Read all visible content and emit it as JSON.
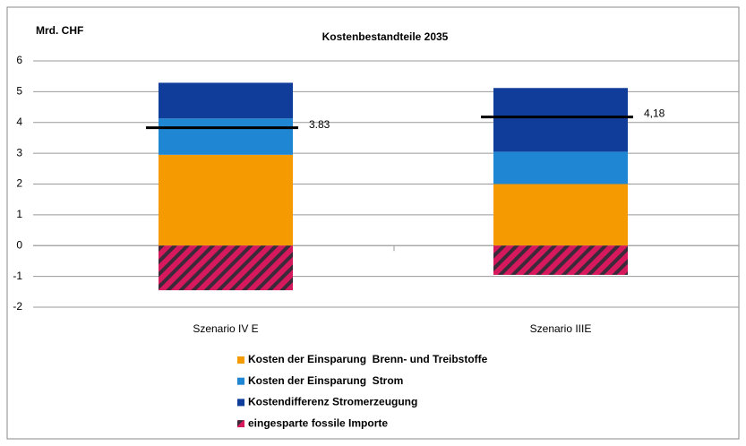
{
  "chart_data": {
    "type": "stacked-bar",
    "title": "Kostenbestandteile 2035",
    "y_label": "Mrd. CHF",
    "categories": [
      "Szenario IV E",
      "Szenario IIIE"
    ],
    "series": [
      {
        "name": "Kosten der Einsparung  Brenn- und Treibstoffe",
        "color": "#f59a00",
        "values": [
          2.95,
          2.0
        ]
      },
      {
        "name": "Kosten der Einsparung  Strom",
        "color": "#1f86d4",
        "values": [
          1.18,
          1.05
        ]
      },
      {
        "name": "Kostendifferenz Stromerzeugung",
        "color": "#103d99",
        "values": [
          1.16,
          2.07
        ]
      },
      {
        "name": "eingesparte fossile Importe",
        "color": "#d6185c",
        "pattern": "hatched",
        "values": [
          -1.45,
          -0.95
        ]
      }
    ],
    "net": {
      "color": "#000000",
      "values": [
        3.83,
        4.18
      ],
      "value_labels": [
        "3.83",
        "4,18"
      ]
    },
    "ylim": [
      -2,
      6
    ],
    "yticks": [
      -2,
      -1,
      0,
      1,
      2,
      3,
      4,
      5,
      6
    ],
    "grid": true
  }
}
